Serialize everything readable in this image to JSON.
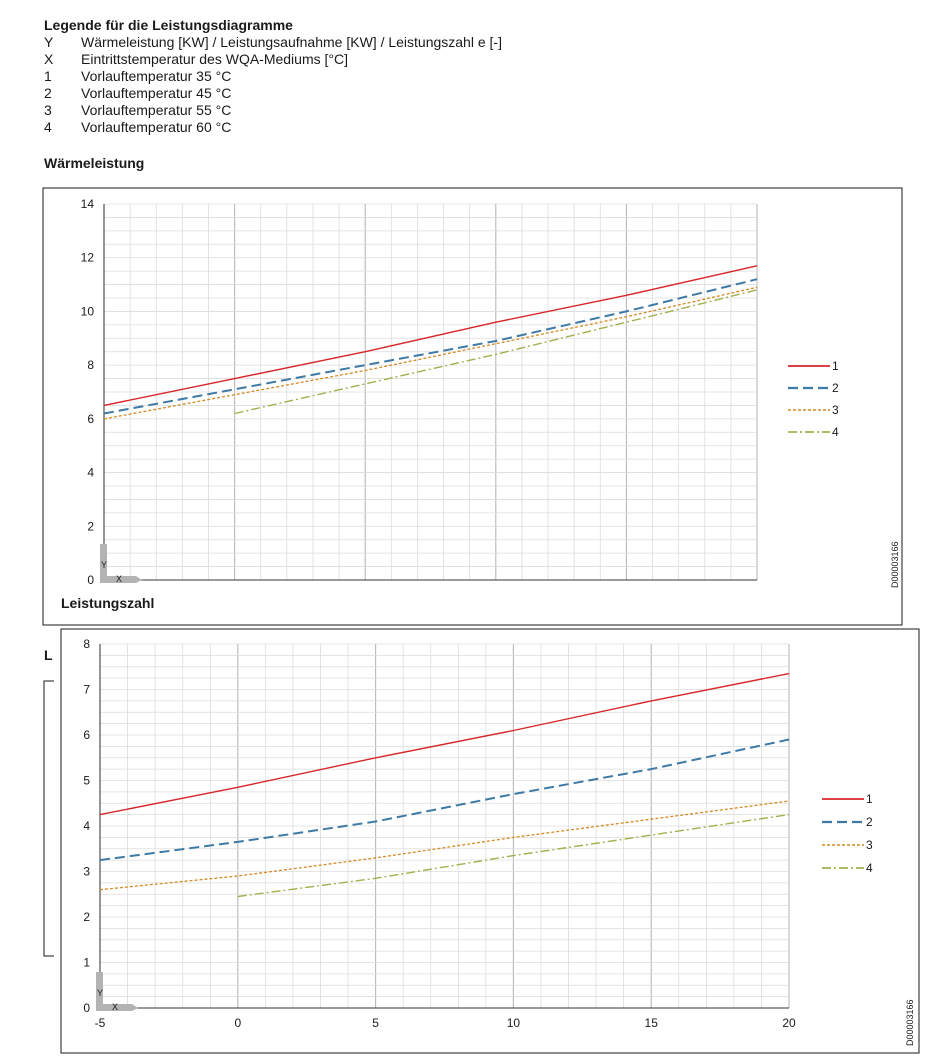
{
  "legend": {
    "title": "Legende für die Leistungsdiagramme",
    "rows": [
      {
        "key": "Y",
        "text": "Wärmeleistung [KW] / Leistungsaufnahme [KW] / Leistungszahl e [-]"
      },
      {
        "key": "X",
        "text": "Eintrittstemperatur des WQA-Mediums [°C]"
      },
      {
        "key": "1",
        "text": "Vorlauftemperatur 35 °C"
      },
      {
        "key": "2",
        "text": "Vorlauftemperatur 45 °C"
      },
      {
        "key": "3",
        "text": "Vorlauftemperatur 55 °C"
      },
      {
        "key": "4",
        "text": "Vorlauftemperatur 60 °C"
      }
    ]
  },
  "headings": {
    "heat": "Wärmeleistung",
    "cop": "Leistungszahl",
    "hidden": "L"
  },
  "colors": {
    "s1": "#d9262a",
    "s2": "#3e7aa5",
    "s3": "#d48a24",
    "s4": "#a3b04e",
    "grid": "#cfcfcf",
    "axis_marker": "#b3b3b3"
  },
  "chart_data": [
    {
      "type": "line",
      "title": "Wärmeleistung",
      "xlim": [
        -5,
        20
      ],
      "ylim": [
        0,
        14
      ],
      "yticks": [
        0,
        2,
        4,
        6,
        8,
        10,
        12,
        14
      ],
      "xticks": [],
      "axis_marker": {
        "y": "Y",
        "x": "X"
      },
      "code": "D00003166",
      "series": [
        {
          "name": "1",
          "x": [
            -5,
            0,
            5,
            10,
            15,
            20
          ],
          "y": [
            6.5,
            7.5,
            8.5,
            9.6,
            10.6,
            11.7
          ]
        },
        {
          "name": "2",
          "x": [
            -5,
            0,
            5,
            10,
            15,
            20
          ],
          "y": [
            6.2,
            7.1,
            8.0,
            8.9,
            10.0,
            11.2
          ]
        },
        {
          "name": "3",
          "x": [
            -5,
            0,
            5,
            10,
            15,
            20
          ],
          "y": [
            6.0,
            6.9,
            7.8,
            8.8,
            9.8,
            10.9
          ]
        },
        {
          "name": "4",
          "x": [
            0,
            5,
            10,
            15,
            20
          ],
          "y": [
            6.2,
            7.3,
            8.4,
            9.6,
            10.8
          ]
        }
      ]
    },
    {
      "type": "line",
      "title": "Leistungszahl",
      "xlim": [
        -5,
        20
      ],
      "ylim": [
        0,
        8
      ],
      "yticks": [
        0,
        1,
        2,
        3,
        4,
        5,
        6,
        7,
        8
      ],
      "xticks": [
        -5,
        0,
        5,
        10,
        15,
        20
      ],
      "axis_marker": {
        "y": "Y",
        "x": "X"
      },
      "code": "D00003166",
      "series": [
        {
          "name": "1",
          "x": [
            -5,
            0,
            5,
            10,
            15,
            20
          ],
          "y": [
            4.25,
            4.85,
            5.5,
            6.1,
            6.75,
            7.35
          ]
        },
        {
          "name": "2",
          "x": [
            -5,
            0,
            5,
            10,
            15,
            20
          ],
          "y": [
            3.25,
            3.65,
            4.1,
            4.7,
            5.25,
            5.9
          ]
        },
        {
          "name": "3",
          "x": [
            -5,
            0,
            5,
            10,
            15,
            20
          ],
          "y": [
            2.6,
            2.9,
            3.3,
            3.75,
            4.15,
            4.55
          ]
        },
        {
          "name": "4",
          "x": [
            0,
            5,
            10,
            15,
            20
          ],
          "y": [
            2.45,
            2.85,
            3.35,
            3.8,
            4.25
          ]
        }
      ]
    }
  ]
}
